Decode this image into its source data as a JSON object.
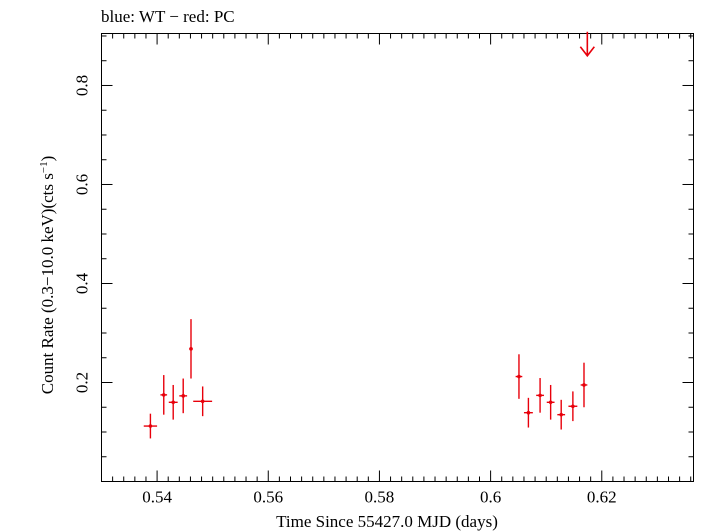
{
  "chart_data": {
    "type": "scatter",
    "title": "blue: WT − red: PC",
    "xlabel": "Time Since 55427.0 MJD (days)",
    "ylabel_main": "Count Rate (0.3−10.0 keV)(cts s",
    "ylabel_sup": "−1",
    "ylabel_close": ")",
    "xlim": [
      0.53,
      0.6365
    ],
    "ylim": [
      0.0,
      0.905
    ],
    "x_ticks": [
      0.54,
      0.56,
      0.58,
      0.6,
      0.62
    ],
    "x_tick_labels": [
      "0.54",
      "0.56",
      "0.58",
      "0.6",
      "0.62"
    ],
    "y_ticks": [
      0.2,
      0.4,
      0.6,
      0.8
    ],
    "y_tick_labels": [
      "0.2",
      "0.4",
      "0.6",
      "0.8"
    ],
    "grid": false,
    "series": [
      {
        "color": "#e8000b",
        "points": [
          {
            "x": 0.5388,
            "xerr": 0.0012,
            "y": 0.112,
            "yerr_lo": 0.025,
            "yerr_hi": 0.025
          },
          {
            "x": 0.5412,
            "xerr": 0.0006,
            "y": 0.175,
            "yerr_lo": 0.04,
            "yerr_hi": 0.04
          },
          {
            "x": 0.5429,
            "xerr": 0.0008,
            "y": 0.16,
            "yerr_lo": 0.035,
            "yerr_hi": 0.035
          },
          {
            "x": 0.5447,
            "xerr": 0.0007,
            "y": 0.173,
            "yerr_lo": 0.035,
            "yerr_hi": 0.035
          },
          {
            "x": 0.5461,
            "xerr": 0.0003,
            "y": 0.268,
            "yerr_lo": 0.06,
            "yerr_hi": 0.06
          },
          {
            "x": 0.5482,
            "xerr": 0.0017,
            "y": 0.162,
            "yerr_lo": 0.03,
            "yerr_hi": 0.03
          },
          {
            "x": 0.6051,
            "xerr": 0.0006,
            "y": 0.212,
            "yerr_lo": 0.045,
            "yerr_hi": 0.045
          },
          {
            "x": 0.6068,
            "xerr": 0.0008,
            "y": 0.139,
            "yerr_lo": 0.03,
            "yerr_hi": 0.03
          },
          {
            "x": 0.6089,
            "xerr": 0.0007,
            "y": 0.174,
            "yerr_lo": 0.035,
            "yerr_hi": 0.035
          },
          {
            "x": 0.6108,
            "xerr": 0.0007,
            "y": 0.16,
            "yerr_lo": 0.035,
            "yerr_hi": 0.035
          },
          {
            "x": 0.6127,
            "xerr": 0.0007,
            "y": 0.135,
            "yerr_lo": 0.03,
            "yerr_hi": 0.03
          },
          {
            "x": 0.6148,
            "xerr": 0.0008,
            "y": 0.152,
            "yerr_lo": 0.03,
            "yerr_hi": 0.03
          },
          {
            "x": 0.6168,
            "xerr": 0.0006,
            "y": 0.195,
            "yerr_lo": 0.045,
            "yerr_hi": 0.045
          }
        ],
        "upper_limits": [
          {
            "x": 0.6174,
            "y": 0.86
          }
        ]
      }
    ]
  }
}
